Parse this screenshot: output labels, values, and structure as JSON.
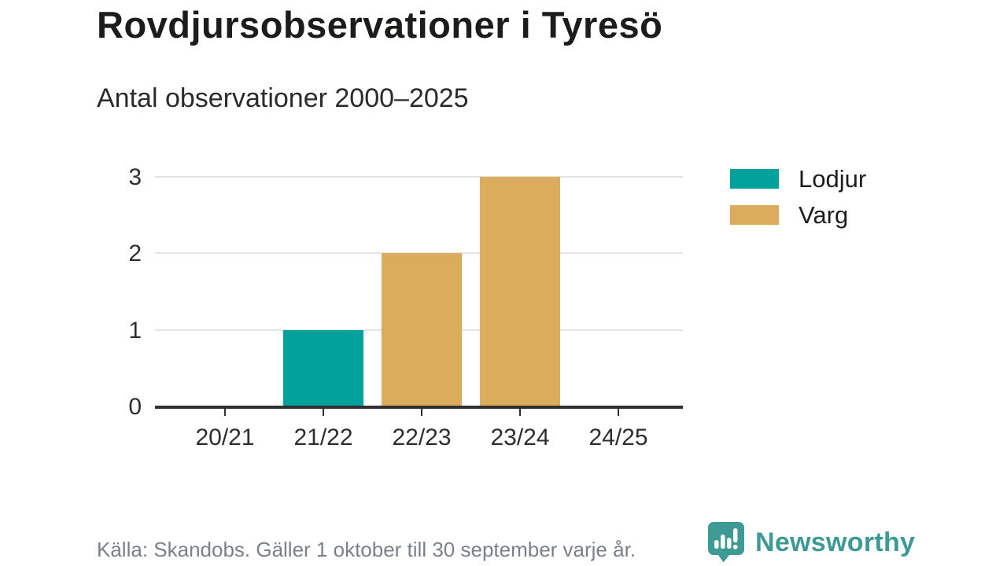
{
  "chart_data": {
    "type": "bar",
    "title": "Rovdjursobservationer i Tyresö",
    "subtitle": "Antal observationer 2000–2025",
    "categories": [
      "20/21",
      "21/22",
      "22/23",
      "23/24",
      "24/25"
    ],
    "series": [
      {
        "name": "Lodjur",
        "color": "#00a29b",
        "values": [
          0,
          1,
          0,
          0,
          0
        ]
      },
      {
        "name": "Varg",
        "color": "#dbac5c",
        "values": [
          0,
          0,
          2,
          3,
          0
        ]
      }
    ],
    "xlabel": "",
    "ylabel": "",
    "ylim": [
      0,
      3
    ],
    "yticks": [
      0,
      1,
      2,
      3
    ],
    "grid": "horizontal-light",
    "legend_position": "right"
  },
  "footer": {
    "source_note": "Källa: Skandobs. Gäller 1 oktober till 30 september varje år.",
    "brand": "Newsworthy",
    "brand_color": "#3d9a94"
  }
}
